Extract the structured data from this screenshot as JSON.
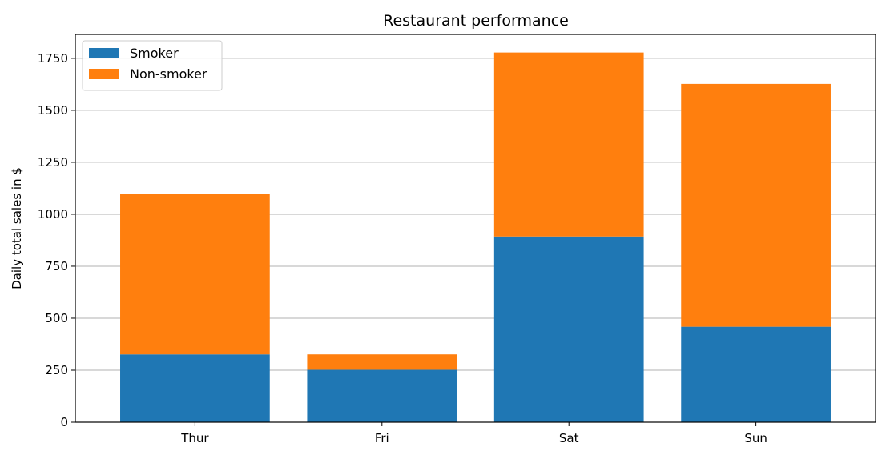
{
  "chart_data": {
    "type": "bar",
    "stacked": true,
    "title": "Restaurant performance",
    "xlabel": "",
    "ylabel": "Daily total sales in $",
    "categories": [
      "Thur",
      "Fri",
      "Sat",
      "Sun"
    ],
    "series": [
      {
        "name": "Smoker",
        "values": [
          326,
          252,
          893,
          459
        ],
        "color": "#1f77b4"
      },
      {
        "name": "Non-smoker",
        "values": [
          770,
          74,
          885,
          1168
        ],
        "color": "#ff7f0e"
      }
    ],
    "ylim": [
      0,
      1865
    ],
    "yticks": [
      0,
      250,
      500,
      750,
      1000,
      1250,
      1500,
      1750
    ],
    "grid": "y",
    "legend_position": "top-left"
  }
}
